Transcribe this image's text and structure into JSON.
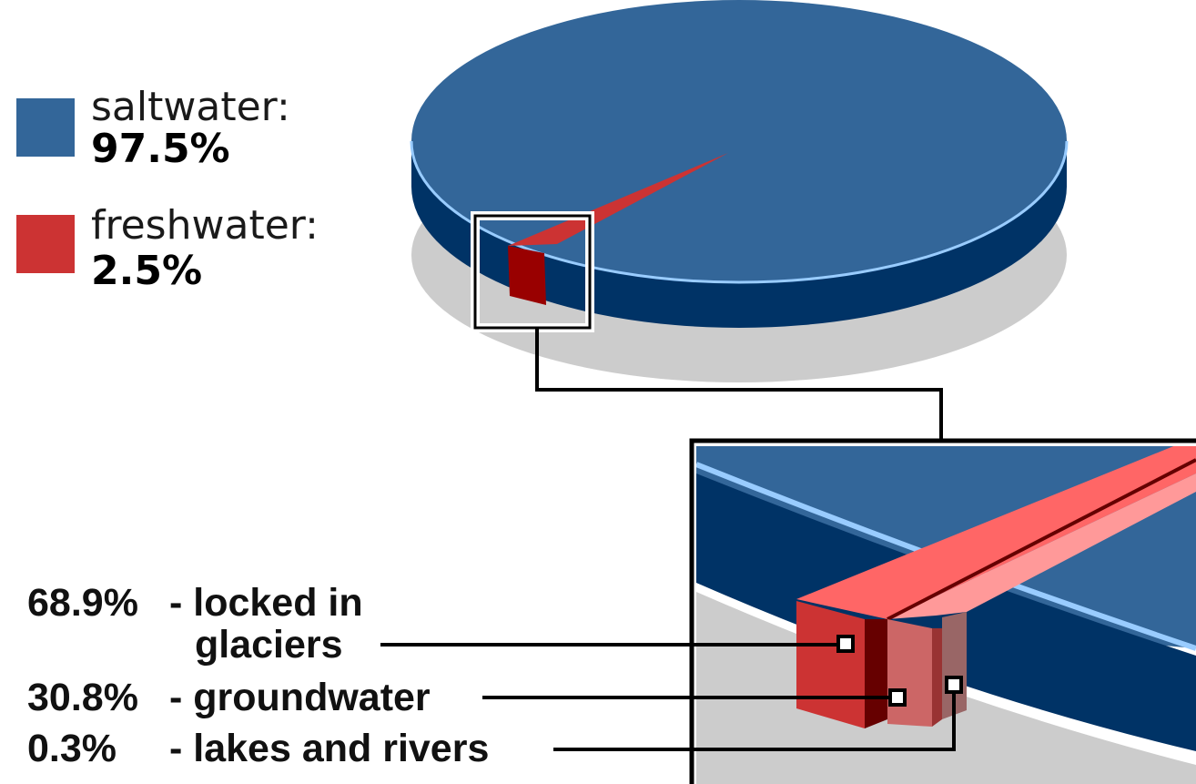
{
  "chart_data": {
    "type": "pie",
    "series": [
      {
        "values": [
          97.5,
          2.5
        ],
        "categories": [
          "saltwater:",
          "freshwater:"
        ],
        "value_labels": [
          "97.5%",
          "2.5%"
        ],
        "colors": [
          "#336699",
          "#cc3333"
        ]
      },
      {
        "values": [
          68.9,
          30.8,
          0.3
        ],
        "value_labels": [
          "68.9%",
          "30.8%",
          "0.3%"
        ],
        "categories": [
          "- locked in glaciers",
          "- groundwater",
          "- lakes and rivers"
        ],
        "colors": [
          "#cc3333",
          "#cc6666",
          "#996666"
        ]
      }
    ],
    "legend": {
      "placement": "top-left"
    }
  },
  "colors": {
    "salt_top": "#336699",
    "salt_side": "#003366",
    "salt_rim": "#99ccff",
    "fresh": "#cc3333",
    "fresh_dark": "#990000",
    "fresh_highlight": "#ff6666",
    "shadow": "#cccccc"
  },
  "legend": {
    "saltwater_label": "saltwater:",
    "saltwater_value": "97.5%",
    "freshwater_label": "freshwater:",
    "freshwater_value": "2.5%"
  },
  "callouts": {
    "glaciers_pct": "68.9%",
    "glaciers_line1": "- locked in",
    "glaciers_line2": "glaciers",
    "groundwater_pct": "30.8%",
    "groundwater_label": "- groundwater",
    "lakes_pct": "0.3%",
    "lakes_label": "- lakes and rivers"
  }
}
